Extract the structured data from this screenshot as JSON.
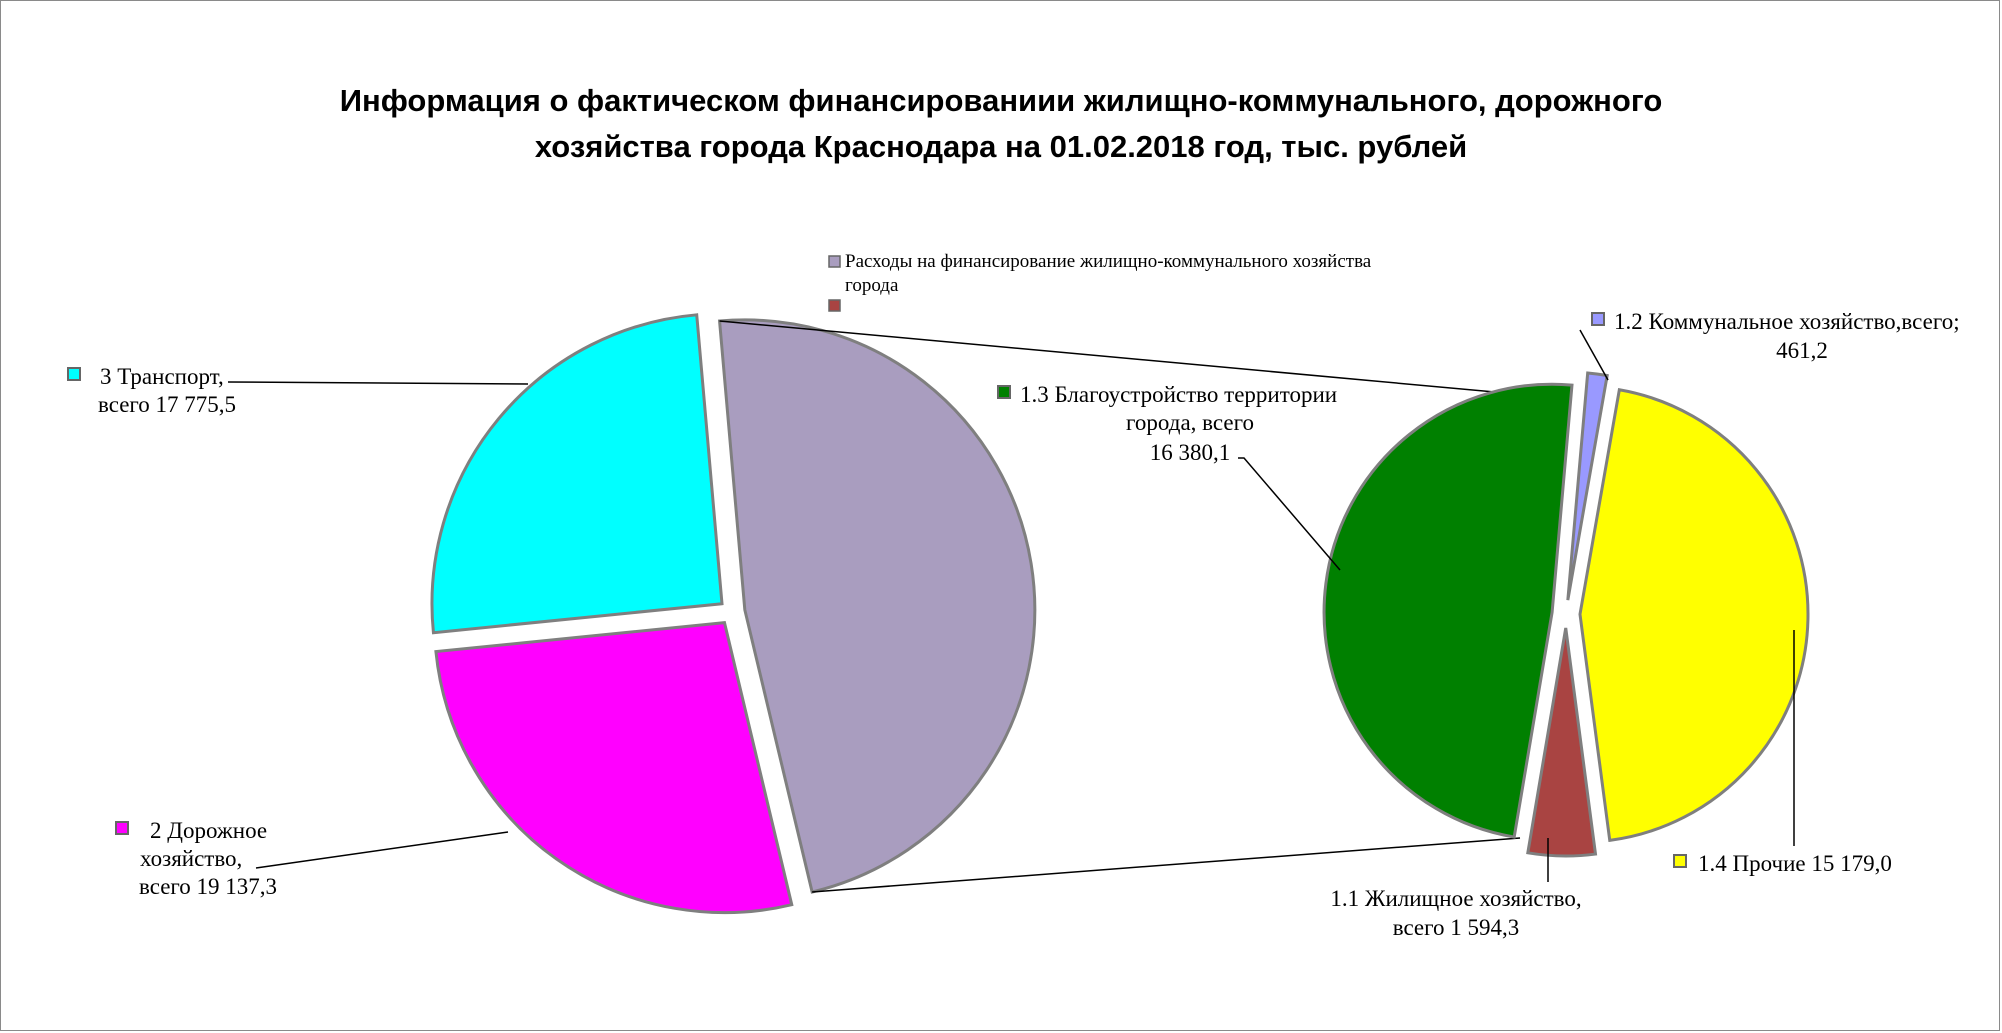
{
  "chart_data": {
    "type": "bar-of-pie",
    "title_lines": [
      "Информация о фактическом финансированиии жилищно-коммунального, дорожного",
      "хозяйства города Краснодара на 01.02.2018 год, тыс. рублей"
    ],
    "legend": [
      {
        "label_lines": [
          "Расходы на финансирование жилищно-коммунального   хозяйства",
          "города"
        ],
        "color": "#A99DBF"
      },
      {
        "label_lines": [
          ""
        ],
        "color": "#A94442"
      }
    ],
    "main_pie": {
      "slices": [
        {
          "name": "Расходы на финансирование жилищно-коммунального хозяйства города",
          "value": 33614.6,
          "color": "#A99DBF",
          "label_lines": []
        },
        {
          "name": "2 Дорожное хозяйство",
          "value": 19137.3,
          "color": "#FF00FF",
          "label_lines": [
            "2 Дорожное",
            "хозяйство,",
            "всего 19 137,3"
          ]
        },
        {
          "name": "3 Транспорт",
          "value": 17775.5,
          "color": "#00FFFF",
          "label_lines": [
            "3 Транспорт,",
            "всего 17 775,5"
          ]
        }
      ]
    },
    "secondary_pie": {
      "slices": [
        {
          "name": "1.2 Коммунальное хозяйство",
          "value": 461.2,
          "color": "#9999FF",
          "label_lines": [
            "1.2 Коммунальное хозяйство,всего;",
            "461,2"
          ]
        },
        {
          "name": "1.4 Прочие",
          "value": 15179.0,
          "color": "#FFFF00",
          "label_lines": [
            "1.4 Прочие 15 179,0"
          ]
        },
        {
          "name": "1.1 Жилищное хозяйство",
          "value": 1594.3,
          "color": "#A94442",
          "label_lines": [
            "1.1 Жилищное хозяйство,",
            "всего 1 594,3"
          ]
        },
        {
          "name": "1.3 Благоустройство территории города",
          "value": 16380.1,
          "color": "#008000",
          "label_lines": [
            "1.3 Благоустройство территории",
            "города, всего",
            "16 380,1"
          ]
        }
      ]
    }
  }
}
